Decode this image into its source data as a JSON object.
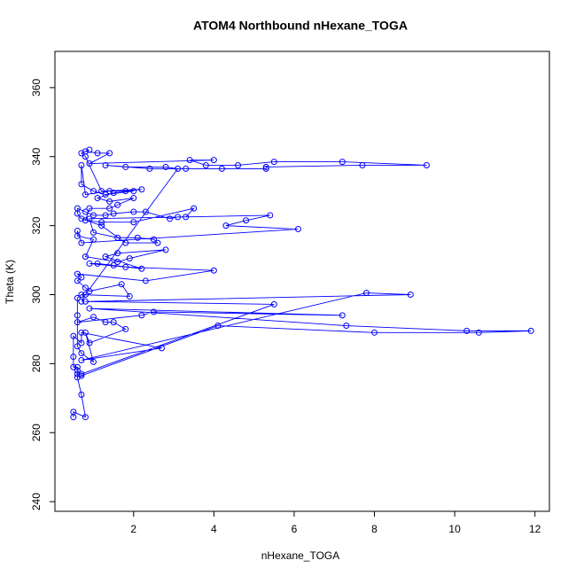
{
  "chart_data": {
    "type": "line",
    "title": "ATOM4 Northbound nHexane_TOGA",
    "x_label": "nHexane_TOGA",
    "y_label": "Theta (K)",
    "xlim": [
      0.04,
      12.36
    ],
    "ylim": [
      237.2,
      370.5
    ],
    "xticks": [
      2,
      4,
      6,
      8,
      10,
      12
    ],
    "yticks": [
      240,
      260,
      280,
      300,
      320,
      340,
      360
    ],
    "series": [
      {
        "color": "#0000ff",
        "x": [
          0.5,
          0.5,
          0.8,
          0.7,
          0.6,
          0.6,
          0.6,
          0.6,
          0.5,
          0.5,
          0.5,
          0.7,
          0.7,
          2.7,
          0.7,
          7.8,
          8.9,
          0.8,
          5.5,
          0.7,
          0.7,
          4.1,
          8.0,
          10.6,
          11.9,
          10.3,
          7.3,
          0.9,
          7.2,
          2.5,
          2.2,
          0.6,
          1.0,
          1.3,
          1.5,
          1.8,
          0.9,
          0.8,
          1.0,
          0.7,
          0.6,
          0.6,
          0.6,
          0.7,
          1.9,
          1.7,
          0.9,
          0.8,
          0.6,
          0.7,
          0.6,
          2.3,
          4.0,
          1.8,
          0.9,
          1.1,
          1.5,
          2.2,
          1.3,
          1.6,
          2.8,
          1.9,
          1.6,
          0.8,
          1.0,
          0.6,
          0.6,
          0.7,
          6.1,
          4.3,
          4.8,
          5.4,
          0.9,
          1.0,
          1.6,
          2.1,
          2.5,
          2.6,
          1.8,
          1.2,
          0.7,
          0.6,
          0.6,
          0.8,
          1.0,
          1.3,
          1.5,
          2.0,
          2.3,
          2.9,
          3.1,
          3.3,
          3.5,
          2.0,
          1.2,
          0.8,
          0.9,
          1.4,
          1.6,
          2.0,
          1.4,
          1.1,
          1.5,
          2.0,
          1.3,
          1.0,
          0.7,
          0.7,
          0.8,
          1.4,
          1.8,
          2.2,
          1.2,
          0.8,
          0.7,
          0.9,
          0.8,
          1.1,
          1.4,
          0.9,
          4.0,
          3.4,
          3.8,
          4.6,
          5.5,
          7.2,
          9.3,
          7.7,
          5.3,
          5.3,
          4.2,
          3.3,
          2.4,
          1.3,
          1.8,
          2.8,
          3.1,
          0.8,
          0.7
        ],
        "values": [
          264.5,
          266,
          264.5,
          271,
          276,
          277,
          278,
          279,
          279,
          282,
          288,
          286,
          289,
          284.5,
          281,
          300.5,
          300,
          298,
          297.2,
          277,
          276.5,
          291,
          289,
          289,
          289.5,
          289.5,
          291,
          296,
          294,
          295,
          294,
          292,
          293.5,
          292,
          292,
          290,
          286,
          289,
          280.5,
          283,
          285,
          294,
          299,
          300,
          299.5,
          303,
          301,
          302,
          304,
          305,
          306,
          304,
          307,
          308,
          309,
          309,
          308.5,
          307.5,
          311,
          312,
          313,
          310.5,
          309.5,
          311,
          316,
          317,
          318.5,
          315,
          319,
          320,
          321.5,
          323,
          322,
          318,
          316.5,
          316.5,
          316,
          315,
          315,
          320,
          322,
          323.5,
          325,
          324,
          323,
          323,
          323.5,
          324,
          324,
          322,
          322.5,
          322.5,
          325,
          321,
          321,
          321.5,
          325,
          325,
          326,
          328,
          327,
          328,
          329.5,
          330,
          329,
          330,
          332,
          337.5,
          329,
          330,
          330,
          330.5,
          330,
          340,
          341,
          342,
          341.5,
          341,
          341,
          338,
          339,
          339,
          337.5,
          337.5,
          338.5,
          338.5,
          337.5,
          337.5,
          337,
          336.5,
          336.5,
          336.5,
          336.5,
          337.5,
          337,
          337,
          336.5,
          300,
          298
        ]
      }
    ]
  }
}
